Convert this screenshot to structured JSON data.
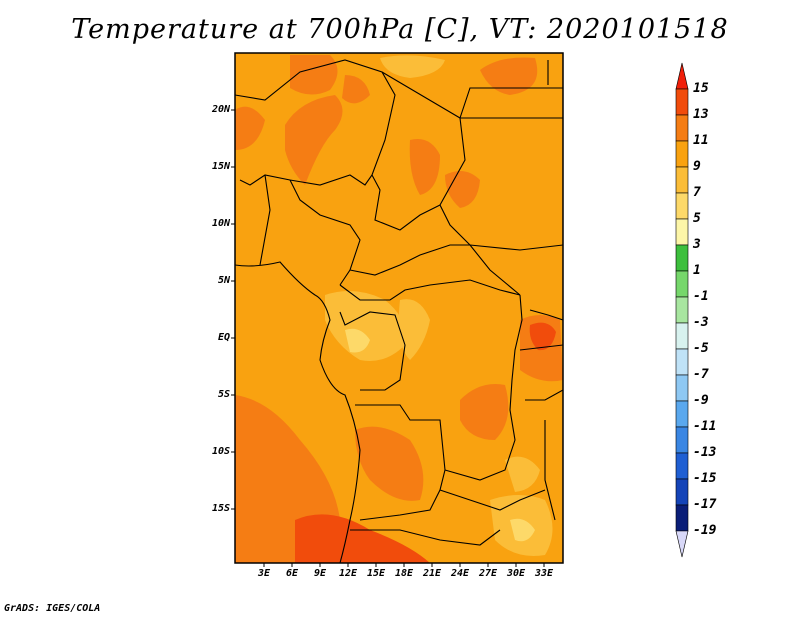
{
  "title": "Temperature at 700hPa [C], VT: 2020101518",
  "credit": "GrADS: IGES/COLA",
  "map": {
    "lat_ticks": [
      "20N",
      "15N",
      "10N",
      "5N",
      "EQ",
      "5S",
      "10S",
      "15S"
    ],
    "lon_ticks": [
      "3E",
      "6E",
      "9E",
      "12E",
      "15E",
      "18E",
      "21E",
      "24E",
      "27E",
      "30E",
      "33E"
    ],
    "colors": {
      "base": "#f9a210",
      "warm": "#f57d14",
      "hot": "#f14c0c",
      "cool": "#fbbd38",
      "cooler": "#fdd969"
    }
  },
  "colorbar": {
    "labels": [
      "15",
      "13",
      "11",
      "9",
      "7",
      "5",
      "3",
      "1",
      "-1",
      "-3",
      "-5",
      "-7",
      "-9",
      "-11",
      "-13",
      "-15",
      "-17",
      "-19"
    ],
    "colors": [
      "#f01f0a",
      "#f14c0c",
      "#f57d14",
      "#f9a210",
      "#fbbd38",
      "#fdd969",
      "#fdf6a8",
      "#3dbf3d",
      "#76d76b",
      "#a8e6a0",
      "#d8f2ef",
      "#bfe2f7",
      "#8ec8f3",
      "#5aa8ee",
      "#3a86e3",
      "#1f5fd3",
      "#1444b8",
      "#0a1e78",
      "#d8d8f8"
    ]
  }
}
